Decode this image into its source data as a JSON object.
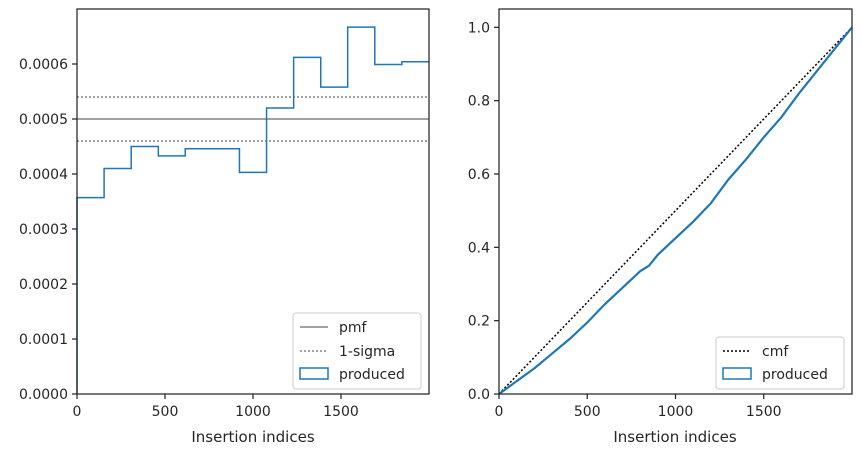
{
  "chart_data": [
    {
      "type": "step",
      "panel": "left",
      "xlabel": "Insertion indices",
      "ylabel": "",
      "xlim": [
        0,
        2000
      ],
      "ylim": [
        0,
        0.0007
      ],
      "xticks": [
        0,
        500,
        1000,
        1500
      ],
      "xtick_labels": [
        "0",
        "500",
        "1000",
        "1500"
      ],
      "yticks": [
        0,
        0.0001,
        0.0002,
        0.0003,
        0.0004,
        0.0005,
        0.0006
      ],
      "ytick_labels": [
        "0.0000",
        "0.0001",
        "0.0002",
        "0.0003",
        "0.0004",
        "0.0005",
        "0.0006"
      ],
      "grid": false,
      "legend_position": "lower-right",
      "series": [
        {
          "name": "pmf",
          "kind": "hline",
          "y": 0.0005,
          "color": "#808080",
          "style": "solid"
        },
        {
          "name": "1-sigma",
          "kind": "hlines",
          "y": [
            0.00046,
            0.00054
          ],
          "color": "#808080",
          "style": "dotted"
        },
        {
          "name": "produced",
          "kind": "histogram",
          "color": "#1f77b4",
          "bin_edges": [
            0,
            154,
            308,
            462,
            615,
            769,
            923,
            1077,
            1231,
            1385,
            1538,
            1692,
            1846,
            2000
          ],
          "values": [
            0.000357,
            0.00041,
            0.00045,
            0.000433,
            0.000446,
            0.000446,
            0.000403,
            0.00052,
            0.000612,
            0.000558,
            0.000667,
            0.000599,
            0.000604
          ]
        }
      ]
    },
    {
      "type": "line",
      "panel": "right",
      "xlabel": "Insertion indices",
      "ylabel": "",
      "xlim": [
        0,
        2000
      ],
      "ylim": [
        0,
        1.05
      ],
      "xticks": [
        0,
        500,
        1000,
        1500
      ],
      "xtick_labels": [
        "0",
        "500",
        "1000",
        "1500"
      ],
      "yticks": [
        0,
        0.2,
        0.4,
        0.6,
        0.8,
        1.0
      ],
      "ytick_labels": [
        "0.0",
        "0.2",
        "0.4",
        "0.6",
        "0.8",
        "1.0"
      ],
      "grid": false,
      "legend_position": "lower-right",
      "series": [
        {
          "name": "cmf",
          "color": "#000000",
          "style": "dotted",
          "x": [
            0,
            2000
          ],
          "y": [
            0,
            1.0
          ]
        },
        {
          "name": "produced",
          "color": "#1f77b4",
          "style": "solid",
          "x": [
            0,
            100,
            200,
            300,
            400,
            500,
            600,
            700,
            800,
            850,
            900,
            1000,
            1100,
            1200,
            1300,
            1400,
            1500,
            1600,
            1700,
            1800,
            1900,
            2000
          ],
          "y": [
            0,
            0.035,
            0.07,
            0.11,
            0.15,
            0.195,
            0.245,
            0.29,
            0.335,
            0.35,
            0.38,
            0.425,
            0.47,
            0.52,
            0.585,
            0.64,
            0.7,
            0.755,
            0.82,
            0.88,
            0.94,
            1.0
          ]
        }
      ]
    }
  ]
}
